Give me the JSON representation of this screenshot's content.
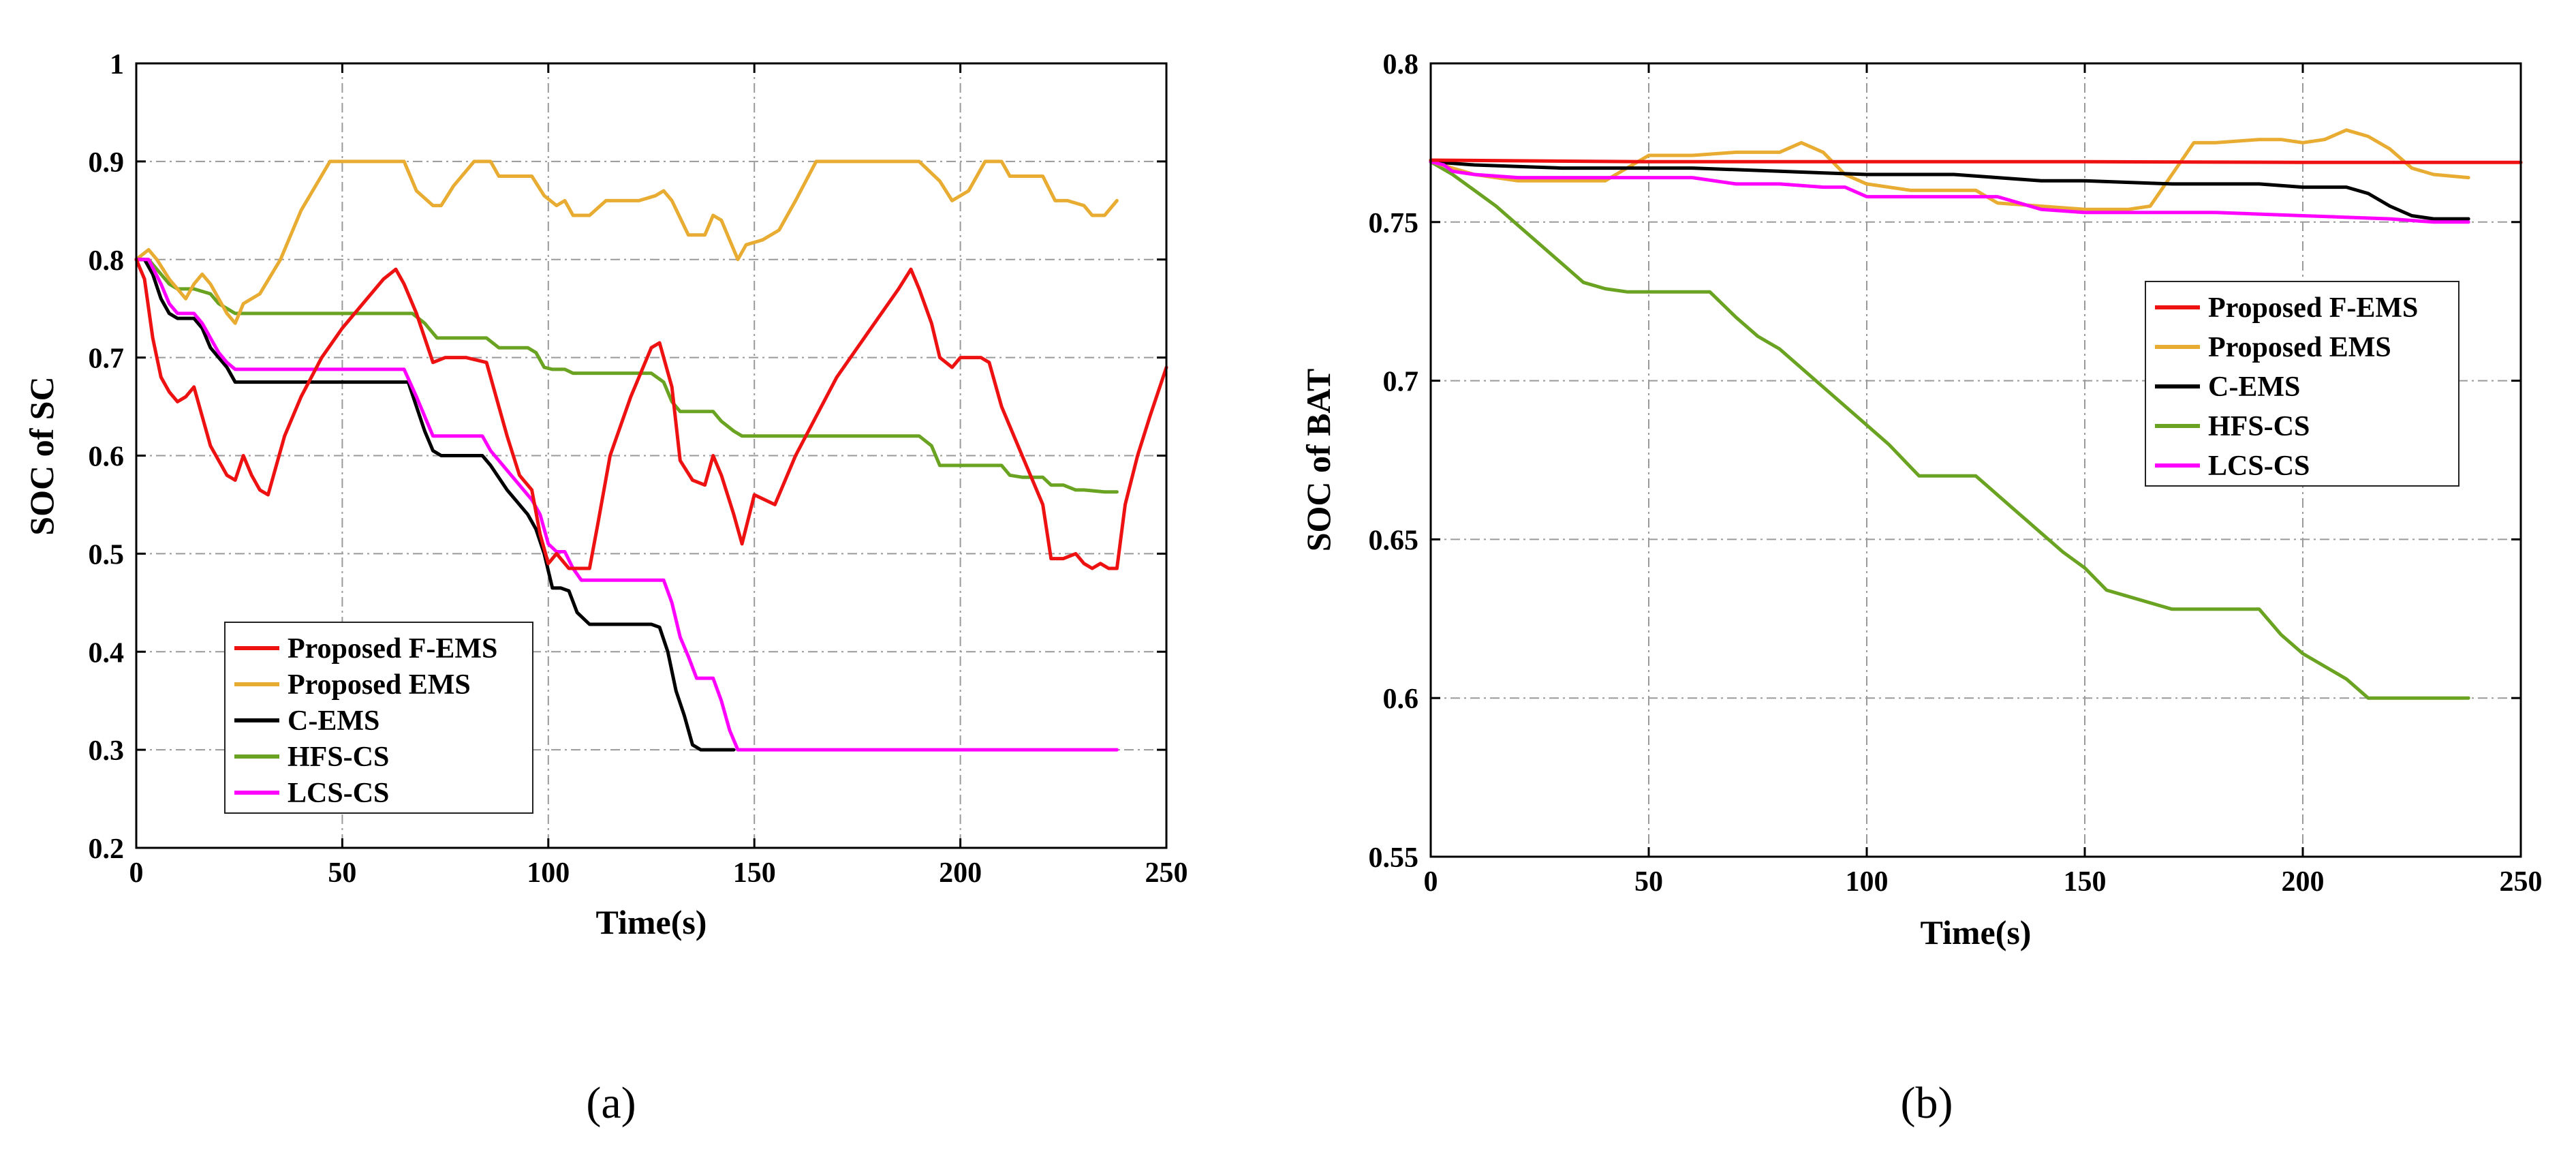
{
  "colors": {
    "Proposed F-EMS": "#ee1111",
    "Proposed EMS": "#e8ac32",
    "C-EMS": "#000000",
    "HFS-CS": "#6aa321",
    "LCS-CS": "#ff00ff"
  },
  "chart_data": [
    {
      "type": "line",
      "caption": "(a)",
      "xlabel": "Time(s)",
      "ylabel": "SOC of SC",
      "xlim": [
        0,
        250
      ],
      "ylim": [
        0.2,
        1
      ],
      "xticks": [
        0,
        50,
        100,
        150,
        200,
        250
      ],
      "yticks": [
        0.2,
        0.3,
        0.4,
        0.5,
        0.6,
        0.7,
        0.8,
        0.9,
        1
      ],
      "grid": true,
      "legend": "bottom-left",
      "series": [
        {
          "name": "Proposed F-EMS",
          "color": "#ee1111",
          "x": [
            0,
            2,
            4,
            6,
            8,
            10,
            12,
            14,
            16,
            18,
            20,
            22,
            24,
            26,
            28,
            30,
            32,
            36,
            40,
            45,
            50,
            55,
            60,
            63,
            65,
            68,
            70,
            72,
            75,
            80,
            85,
            88,
            90,
            93,
            96,
            98,
            100,
            102,
            105,
            110,
            112,
            115,
            120,
            125,
            127,
            130,
            132,
            135,
            138,
            140,
            142,
            145,
            147,
            150,
            155,
            160,
            165,
            170,
            175,
            180,
            185,
            188,
            190,
            193,
            195,
            198,
            200,
            205,
            207,
            210,
            215,
            220,
            222,
            225,
            228,
            230,
            232,
            234,
            236,
            238,
            240,
            243,
            246,
            250
          ],
          "y": [
            0.8,
            0.78,
            0.72,
            0.68,
            0.665,
            0.655,
            0.66,
            0.67,
            0.64,
            0.61,
            0.595,
            0.58,
            0.575,
            0.6,
            0.58,
            0.565,
            0.56,
            0.62,
            0.66,
            0.7,
            0.73,
            0.755,
            0.78,
            0.79,
            0.775,
            0.745,
            0.72,
            0.695,
            0.7,
            0.7,
            0.695,
            0.65,
            0.62,
            0.58,
            0.565,
            0.52,
            0.49,
            0.5,
            0.485,
            0.485,
            0.53,
            0.6,
            0.66,
            0.71,
            0.715,
            0.67,
            0.595,
            0.575,
            0.57,
            0.6,
            0.58,
            0.54,
            0.51,
            0.56,
            0.55,
            0.6,
            0.64,
            0.68,
            0.71,
            0.74,
            0.77,
            0.79,
            0.77,
            0.735,
            0.7,
            0.69,
            0.7,
            0.7,
            0.695,
            0.65,
            0.6,
            0.55,
            0.495,
            0.495,
            0.5,
            0.49,
            0.485,
            0.49,
            0.485,
            0.485,
            0.55,
            0.6,
            0.64,
            0.69
          ]
        },
        {
          "name": "Proposed EMS",
          "color": "#e8ac32",
          "x": [
            0,
            3,
            5,
            8,
            10,
            12,
            14,
            16,
            18,
            22,
            24,
            26,
            30,
            35,
            40,
            47,
            55,
            60,
            65,
            68,
            72,
            74,
            77,
            80,
            82,
            86,
            88,
            92,
            96,
            99,
            102,
            104,
            106,
            110,
            114,
            118,
            122,
            126,
            128,
            130,
            134,
            138,
            140,
            142,
            146,
            148,
            152,
            156,
            160,
            165,
            170,
            180,
            190,
            195,
            198,
            202,
            206,
            210,
            212,
            215,
            220,
            223,
            226,
            230,
            232,
            235,
            238
          ],
          "y": [
            0.8,
            0.81,
            0.8,
            0.78,
            0.77,
            0.76,
            0.775,
            0.785,
            0.775,
            0.745,
            0.735,
            0.755,
            0.765,
            0.8,
            0.85,
            0.9,
            0.9,
            0.9,
            0.9,
            0.87,
            0.855,
            0.855,
            0.875,
            0.89,
            0.9,
            0.9,
            0.885,
            0.885,
            0.885,
            0.865,
            0.855,
            0.86,
            0.845,
            0.845,
            0.86,
            0.86,
            0.86,
            0.865,
            0.87,
            0.86,
            0.825,
            0.825,
            0.845,
            0.84,
            0.8,
            0.815,
            0.82,
            0.83,
            0.86,
            0.9,
            0.9,
            0.9,
            0.9,
            0.88,
            0.86,
            0.87,
            0.9,
            0.9,
            0.885,
            0.885,
            0.885,
            0.86,
            0.86,
            0.855,
            0.845,
            0.845,
            0.86
          ]
        },
        {
          "name": "C-EMS",
          "color": "#000000",
          "x": [
            0,
            2,
            4,
            6,
            8,
            10,
            12,
            14,
            16,
            18,
            20,
            22,
            24,
            30,
            40,
            50,
            60,
            66,
            68,
            70,
            72,
            74,
            76,
            80,
            84,
            86,
            90,
            95,
            97,
            99,
            101,
            103,
            105,
            107,
            110,
            115,
            120,
            125,
            127,
            129,
            131,
            133,
            135,
            137,
            140,
            145
          ],
          "y": [
            0.8,
            0.8,
            0.785,
            0.76,
            0.745,
            0.74,
            0.74,
            0.74,
            0.73,
            0.71,
            0.7,
            0.69,
            0.675,
            0.675,
            0.675,
            0.675,
            0.675,
            0.675,
            0.65,
            0.625,
            0.605,
            0.6,
            0.6,
            0.6,
            0.6,
            0.59,
            0.565,
            0.54,
            0.525,
            0.5,
            0.465,
            0.465,
            0.462,
            0.44,
            0.428,
            0.428,
            0.428,
            0.428,
            0.425,
            0.4,
            0.36,
            0.335,
            0.305,
            0.3,
            0.3,
            0.3
          ]
        },
        {
          "name": "HFS-CS",
          "color": "#6aa321",
          "x": [
            0,
            3,
            6,
            8,
            10,
            14,
            18,
            20,
            22,
            24,
            30,
            40,
            50,
            60,
            67,
            70,
            73,
            80,
            85,
            88,
            95,
            97,
            99,
            101,
            104,
            106,
            110,
            125,
            128,
            130,
            132,
            135,
            138,
            140,
            142,
            145,
            147,
            150,
            160,
            170,
            180,
            190,
            193,
            195,
            200,
            210,
            212,
            215,
            220,
            222,
            225,
            228,
            230,
            235,
            238
          ],
          "y": [
            0.8,
            0.8,
            0.785,
            0.775,
            0.77,
            0.77,
            0.765,
            0.755,
            0.75,
            0.745,
            0.745,
            0.745,
            0.745,
            0.745,
            0.745,
            0.735,
            0.72,
            0.72,
            0.72,
            0.71,
            0.71,
            0.705,
            0.69,
            0.688,
            0.688,
            0.684,
            0.684,
            0.684,
            0.675,
            0.655,
            0.645,
            0.645,
            0.645,
            0.645,
            0.635,
            0.625,
            0.62,
            0.62,
            0.62,
            0.62,
            0.62,
            0.62,
            0.61,
            0.59,
            0.59,
            0.59,
            0.58,
            0.578,
            0.578,
            0.57,
            0.57,
            0.565,
            0.565,
            0.563,
            0.563
          ]
        },
        {
          "name": "LCS-CS",
          "color": "#ff00ff",
          "x": [
            0,
            3,
            6,
            8,
            10,
            14,
            16,
            18,
            20,
            22,
            24,
            30,
            40,
            50,
            60,
            65,
            68,
            70,
            72,
            80,
            84,
            86,
            90,
            94,
            96,
            98,
            100,
            102,
            104,
            106,
            108,
            110,
            120,
            128,
            130,
            132,
            134,
            136,
            140,
            142,
            144,
            146,
            150,
            160,
            180,
            200,
            220,
            238
          ],
          "y": [
            0.8,
            0.8,
            0.775,
            0.755,
            0.745,
            0.745,
            0.735,
            0.72,
            0.705,
            0.695,
            0.688,
            0.688,
            0.688,
            0.688,
            0.688,
            0.688,
            0.66,
            0.64,
            0.62,
            0.62,
            0.62,
            0.605,
            0.585,
            0.565,
            0.555,
            0.54,
            0.51,
            0.502,
            0.502,
            0.485,
            0.473,
            0.473,
            0.473,
            0.473,
            0.45,
            0.415,
            0.395,
            0.373,
            0.373,
            0.35,
            0.32,
            0.3,
            0.3,
            0.3,
            0.3,
            0.3,
            0.3,
            0.3
          ]
        }
      ]
    },
    {
      "type": "line",
      "caption": "(b)",
      "xlabel": "Time(s)",
      "ylabel": "SOC of BAT",
      "xlim": [
        0,
        250
      ],
      "ylim": [
        0.55,
        0.8
      ],
      "xticks": [
        0,
        50,
        100,
        150,
        200,
        250
      ],
      "yticks": [
        0.55,
        0.6,
        0.65,
        0.7,
        0.75,
        0.8
      ],
      "grid": true,
      "legend": "right",
      "series": [
        {
          "name": "Proposed F-EMS",
          "color": "#ee1111",
          "x": [
            0,
            50,
            100,
            150,
            200,
            250
          ],
          "y": [
            0.7695,
            0.769,
            0.769,
            0.769,
            0.7688,
            0.7688
          ]
        },
        {
          "name": "Proposed EMS",
          "color": "#e8ac32",
          "x": [
            0,
            5,
            10,
            15,
            20,
            40,
            45,
            50,
            60,
            70,
            80,
            85,
            90,
            95,
            100,
            110,
            125,
            130,
            140,
            150,
            160,
            165,
            170,
            175,
            180,
            190,
            195,
            200,
            205,
            210,
            215,
            220,
            225,
            230,
            238
          ],
          "y": [
            0.769,
            0.767,
            0.765,
            0.764,
            0.763,
            0.763,
            0.767,
            0.771,
            0.771,
            0.772,
            0.772,
            0.775,
            0.772,
            0.765,
            0.762,
            0.76,
            0.76,
            0.756,
            0.755,
            0.754,
            0.754,
            0.755,
            0.765,
            0.775,
            0.775,
            0.776,
            0.776,
            0.775,
            0.776,
            0.779,
            0.777,
            0.773,
            0.767,
            0.765,
            0.764
          ]
        },
        {
          "name": "C-EMS",
          "color": "#000000",
          "x": [
            0,
            10,
            30,
            60,
            80,
            100,
            110,
            120,
            130,
            140,
            150,
            170,
            190,
            200,
            210,
            215,
            220,
            225,
            230,
            238
          ],
          "y": [
            0.769,
            0.768,
            0.767,
            0.767,
            0.766,
            0.765,
            0.765,
            0.765,
            0.764,
            0.763,
            0.763,
            0.762,
            0.762,
            0.761,
            0.761,
            0.759,
            0.755,
            0.752,
            0.751,
            0.751
          ]
        },
        {
          "name": "HFS-CS",
          "color": "#6aa321",
          "x": [
            0,
            5,
            10,
            15,
            20,
            25,
            30,
            35,
            40,
            45,
            50,
            60,
            64,
            70,
            75,
            80,
            90,
            100,
            105,
            112,
            115,
            120,
            125,
            130,
            135,
            140,
            145,
            150,
            155,
            160,
            170,
            180,
            190,
            195,
            200,
            205,
            210,
            215,
            220,
            230,
            238
          ],
          "y": [
            0.769,
            0.765,
            0.76,
            0.755,
            0.749,
            0.743,
            0.737,
            0.731,
            0.729,
            0.728,
            0.728,
            0.728,
            0.728,
            0.72,
            0.714,
            0.71,
            0.698,
            0.686,
            0.68,
            0.67,
            0.67,
            0.67,
            0.67,
            0.664,
            0.658,
            0.652,
            0.646,
            0.641,
            0.634,
            0.632,
            0.628,
            0.628,
            0.628,
            0.62,
            0.614,
            0.61,
            0.606,
            0.6,
            0.6,
            0.6,
            0.6
          ]
        },
        {
          "name": "LCS-CS",
          "color": "#ff00ff",
          "x": [
            0,
            3,
            5,
            10,
            20,
            30,
            40,
            50,
            60,
            70,
            80,
            90,
            95,
            100,
            110,
            120,
            130,
            140,
            150,
            160,
            180,
            200,
            220,
            230,
            238
          ],
          "y": [
            0.769,
            0.768,
            0.766,
            0.765,
            0.764,
            0.764,
            0.764,
            0.764,
            0.764,
            0.762,
            0.762,
            0.761,
            0.761,
            0.758,
            0.758,
            0.758,
            0.758,
            0.754,
            0.753,
            0.753,
            0.753,
            0.752,
            0.751,
            0.75,
            0.75
          ]
        }
      ]
    }
  ]
}
